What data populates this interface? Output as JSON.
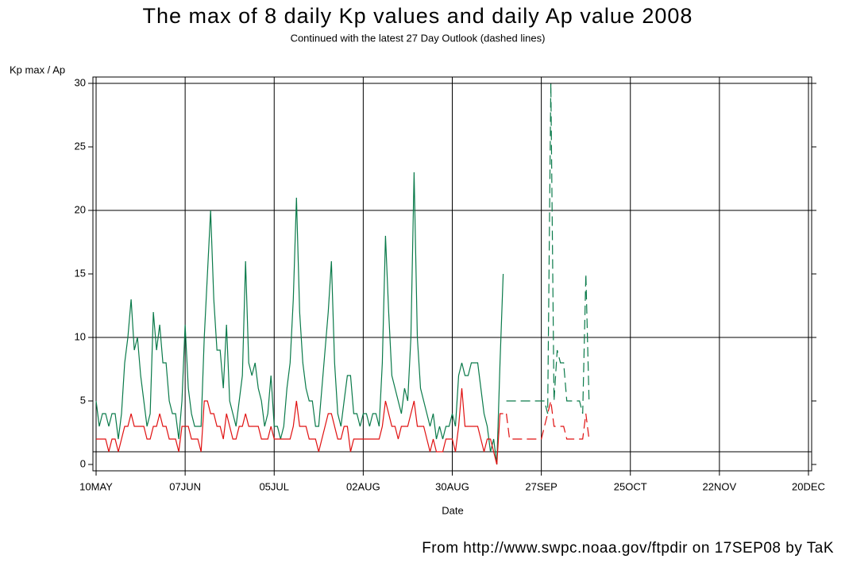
{
  "chart_data": {
    "type": "line",
    "title": "The max of 8 daily Kp values and daily Ap value 2008",
    "subtitle": "Continued with the latest 27 Day Outlook (dashed lines)",
    "y_label": "Kp max / Ap",
    "x_label": "Date",
    "footer": "From http://www.swpc.noaa.gov/ftpdir on 17SEP08 by TaK",
    "x": [
      "10MAY",
      "11MAY",
      "12MAY",
      "13MAY",
      "14MAY",
      "15MAY",
      "16MAY",
      "17MAY",
      "18MAY",
      "19MAY",
      "20MAY",
      "21MAY",
      "22MAY",
      "23MAY",
      "24MAY",
      "25MAY",
      "26MAY",
      "27MAY",
      "28MAY",
      "29MAY",
      "30MAY",
      "31MAY",
      "01JUN",
      "02JUN",
      "03JUN",
      "04JUN",
      "05JUN",
      "06JUN",
      "07JUN",
      "08JUN",
      "09JUN",
      "10JUN",
      "11JUN",
      "12JUN",
      "13JUN",
      "14JUN",
      "15JUN",
      "16JUN",
      "17JUN",
      "18JUN",
      "19JUN",
      "20JUN",
      "21JUN",
      "22JUN",
      "23JUN",
      "24JUN",
      "25JUN",
      "26JUN",
      "27JUN",
      "28JUN",
      "29JUN",
      "30JUN",
      "01JUL",
      "02JUL",
      "03JUL",
      "04JUL",
      "05JUL",
      "06JUL",
      "07JUL",
      "08JUL",
      "09JUL",
      "10JUL",
      "11JUL",
      "12JUL",
      "13JUL",
      "14JUL",
      "15JUL",
      "16JUL",
      "17JUL",
      "18JUL",
      "19JUL",
      "20JUL",
      "21JUL",
      "22JUL",
      "23JUL",
      "24JUL",
      "25JUL",
      "26JUL",
      "27JUL",
      "28JUL",
      "29JUL",
      "30JUL",
      "31JUL",
      "01AUG",
      "02AUG",
      "03AUG",
      "04AUG",
      "05AUG",
      "06AUG",
      "07AUG",
      "08AUG",
      "09AUG",
      "10AUG",
      "11AUG",
      "12AUG",
      "13AUG",
      "14AUG",
      "15AUG",
      "16AUG",
      "17AUG",
      "18AUG",
      "19AUG",
      "20AUG",
      "21AUG",
      "22AUG",
      "23AUG",
      "24AUG",
      "25AUG",
      "26AUG",
      "27AUG",
      "28AUG",
      "29AUG",
      "30AUG",
      "31AUG",
      "01SEP",
      "02SEP",
      "03SEP",
      "04SEP",
      "05SEP",
      "06SEP",
      "07SEP",
      "08SEP",
      "09SEP",
      "10SEP",
      "11SEP",
      "12SEP",
      "13SEP",
      "14SEP",
      "15SEP",
      "16SEP",
      "17SEP",
      "18SEP",
      "19SEP",
      "20SEP",
      "21SEP",
      "22SEP",
      "23SEP",
      "24SEP",
      "25SEP",
      "26SEP",
      "27SEP",
      "28SEP",
      "29SEP",
      "30SEP",
      "01OCT",
      "02OCT",
      "03OCT",
      "04OCT",
      "05OCT",
      "06OCT",
      "07OCT",
      "08OCT",
      "09OCT",
      "10OCT",
      "11OCT",
      "12OCT"
    ],
    "series": [
      {
        "color": "#0a7a4a",
        "dashed": false,
        "values": [
          5,
          3,
          4,
          4,
          3,
          4,
          4,
          2,
          4,
          8,
          10,
          13,
          9,
          10,
          7,
          5,
          3,
          4,
          12,
          9,
          11,
          8,
          8,
          5,
          4,
          4,
          2,
          5,
          11,
          6,
          4,
          3,
          3,
          3,
          10,
          15,
          20,
          13,
          9,
          9,
          6,
          11,
          5,
          4,
          3,
          5,
          7,
          16,
          8,
          7,
          8,
          6,
          5,
          3,
          4,
          7,
          3,
          3,
          2,
          3,
          6,
          8,
          13,
          21,
          12,
          8,
          6,
          5,
          5,
          3,
          3,
          6,
          9,
          12,
          16,
          8,
          4,
          3,
          5,
          7,
          7,
          4,
          4,
          3,
          4,
          4,
          3,
          4,
          4,
          3,
          8,
          18,
          12,
          7,
          6,
          5,
          4,
          6,
          5,
          10,
          23,
          10,
          6,
          5,
          4,
          3,
          4,
          2,
          3,
          2,
          3,
          3,
          4,
          3,
          7,
          8,
          7,
          7,
          8,
          8,
          8,
          6,
          4,
          3,
          1,
          2,
          0,
          8,
          15,
          null,
          null,
          null,
          null,
          null,
          null,
          null,
          null,
          null,
          null,
          null,
          null,
          null,
          null,
          null,
          null,
          null,
          null,
          null,
          null,
          null,
          null,
          null,
          null,
          null,
          null,
          null
        ]
      },
      {
        "color": "#0a7a4a",
        "dashed": true,
        "values": [
          null,
          null,
          null,
          null,
          null,
          null,
          null,
          null,
          null,
          null,
          null,
          null,
          null,
          null,
          null,
          null,
          null,
          null,
          null,
          null,
          null,
          null,
          null,
          null,
          null,
          null,
          null,
          null,
          null,
          null,
          null,
          null,
          null,
          null,
          null,
          null,
          null,
          null,
          null,
          null,
          null,
          null,
          null,
          null,
          null,
          null,
          null,
          null,
          null,
          null,
          null,
          null,
          null,
          null,
          null,
          null,
          null,
          null,
          null,
          null,
          null,
          null,
          null,
          null,
          null,
          null,
          null,
          null,
          null,
          null,
          null,
          null,
          null,
          null,
          null,
          null,
          null,
          null,
          null,
          null,
          null,
          null,
          null,
          null,
          null,
          null,
          null,
          null,
          null,
          null,
          null,
          null,
          null,
          null,
          null,
          null,
          null,
          null,
          null,
          null,
          null,
          null,
          null,
          null,
          null,
          null,
          null,
          null,
          null,
          null,
          null,
          null,
          null,
          null,
          null,
          null,
          null,
          null,
          null,
          null,
          null,
          null,
          null,
          null,
          null,
          null,
          null,
          null,
          null,
          5,
          5,
          5,
          5,
          5,
          5,
          5,
          5,
          5,
          5,
          5,
          5,
          5,
          4,
          30,
          5,
          9,
          8,
          8,
          5,
          5,
          5,
          5,
          5,
          4,
          15,
          5
        ]
      },
      {
        "color": "#e01010",
        "dashed": false,
        "values": [
          2,
          2,
          2,
          2,
          1,
          2,
          2,
          1,
          2,
          3,
          3,
          4,
          3,
          3,
          3,
          3,
          2,
          2,
          3,
          3,
          4,
          3,
          3,
          2,
          2,
          2,
          1,
          3,
          3,
          3,
          2,
          2,
          2,
          1,
          5,
          5,
          4,
          4,
          3,
          3,
          2,
          4,
          3,
          2,
          2,
          3,
          3,
          4,
          3,
          3,
          3,
          3,
          2,
          2,
          2,
          3,
          2,
          2,
          2,
          2,
          2,
          2,
          3,
          5,
          3,
          3,
          3,
          2,
          2,
          2,
          1,
          2,
          3,
          4,
          4,
          3,
          2,
          2,
          3,
          3,
          1,
          2,
          2,
          2,
          2,
          2,
          2,
          2,
          2,
          2,
          3,
          5,
          4,
          3,
          3,
          2,
          3,
          3,
          3,
          4,
          5,
          3,
          3,
          3,
          2,
          1,
          2,
          1,
          1,
          1,
          2,
          2,
          2,
          1,
          3,
          6,
          3,
          3,
          3,
          3,
          3,
          2,
          1,
          2,
          2,
          1,
          0,
          4,
          4,
          null,
          null,
          null,
          null,
          null,
          null,
          null,
          null,
          null,
          null,
          null,
          null,
          null,
          null,
          null,
          null,
          null,
          null,
          null,
          null,
          null,
          null,
          null,
          null,
          null,
          null,
          null
        ]
      },
      {
        "color": "#e01010",
        "dashed": true,
        "values": [
          null,
          null,
          null,
          null,
          null,
          null,
          null,
          null,
          null,
          null,
          null,
          null,
          null,
          null,
          null,
          null,
          null,
          null,
          null,
          null,
          null,
          null,
          null,
          null,
          null,
          null,
          null,
          null,
          null,
          null,
          null,
          null,
          null,
          null,
          null,
          null,
          null,
          null,
          null,
          null,
          null,
          null,
          null,
          null,
          null,
          null,
          null,
          null,
          null,
          null,
          null,
          null,
          null,
          null,
          null,
          null,
          null,
          null,
          null,
          null,
          null,
          null,
          null,
          null,
          null,
          null,
          null,
          null,
          null,
          null,
          null,
          null,
          null,
          null,
          null,
          null,
          null,
          null,
          null,
          null,
          null,
          null,
          null,
          null,
          null,
          null,
          null,
          null,
          null,
          null,
          null,
          null,
          null,
          null,
          null,
          null,
          null,
          null,
          null,
          null,
          null,
          null,
          null,
          null,
          null,
          null,
          null,
          null,
          null,
          null,
          null,
          null,
          null,
          null,
          null,
          null,
          null,
          null,
          null,
          null,
          null,
          null,
          null,
          null,
          null,
          null,
          null,
          null,
          null,
          4,
          2,
          2,
          2,
          2,
          2,
          2,
          2,
          2,
          2,
          2,
          2,
          3,
          4,
          5,
          3,
          3,
          3,
          3,
          2,
          2,
          2,
          2,
          2,
          2,
          4,
          2
        ]
      }
    ],
    "xlim": [
      "09MAY",
      "21DEC"
    ],
    "xticks": [
      "10MAY",
      "07JUN",
      "05JUL",
      "02AUG",
      "30AUG",
      "27SEP",
      "25OCT",
      "22NOV",
      "20DEC"
    ],
    "ylim": [
      -0.5,
      30.5
    ],
    "yticks": [
      0,
      5,
      10,
      15,
      20,
      25,
      30
    ],
    "hlines": [
      1,
      10,
      20,
      30
    ]
  }
}
